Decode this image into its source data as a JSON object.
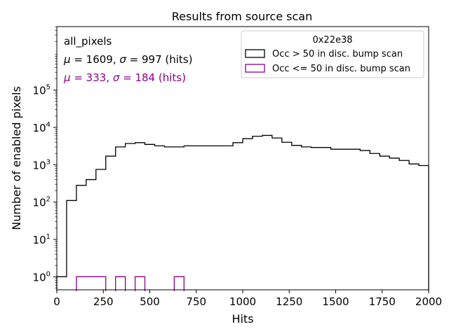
{
  "chart_data": {
    "type": "histogram",
    "title": "Results from source scan",
    "xlabel": "Hits",
    "ylabel": "Number of enabled pixels",
    "xlim": [
      0,
      2000
    ],
    "ylim_log10": [
      -0.35,
      6.7
    ],
    "yscale": "log",
    "xticks": [
      {
        "v": 0,
        "label": "0"
      },
      {
        "v": 250,
        "label": "250"
      },
      {
        "v": 500,
        "label": "500"
      },
      {
        "v": 750,
        "label": "750"
      },
      {
        "v": 1000,
        "label": "1000"
      },
      {
        "v": 1250,
        "label": "1250"
      },
      {
        "v": 1500,
        "label": "1500"
      },
      {
        "v": 1750,
        "label": "1750"
      },
      {
        "v": 2000,
        "label": "2000"
      }
    ],
    "yticks": [
      {
        "exp": 0,
        "base": "10",
        "sup": "0"
      },
      {
        "exp": 1,
        "base": "10",
        "sup": "1"
      },
      {
        "exp": 2,
        "base": "10",
        "sup": "2"
      },
      {
        "exp": 3,
        "base": "10",
        "sup": "3"
      },
      {
        "exp": 4,
        "base": "10",
        "sup": "4"
      },
      {
        "exp": 5,
        "base": "10",
        "sup": "5"
      }
    ],
    "annotations": {
      "label": "all_pixels",
      "stats_black": {
        "prefix_sym": "μ",
        "eq1": " = 1609, ",
        "sym2": "σ",
        "eq2": " = 997 (hits)"
      },
      "stats_purple": {
        "prefix_sym": "μ",
        "eq1": " = 333, ",
        "sym2": "σ",
        "eq2": " = 184 (hits)"
      }
    },
    "legend": {
      "title": "0x22e38",
      "position": "top-right",
      "entries": [
        {
          "label": "Occ > 50 in disc. bump scan",
          "color": "#000000"
        },
        {
          "label": "Occ <= 50 in disc. bump scan",
          "color": "#8b008b"
        }
      ]
    },
    "series": [
      {
        "name": "Occ > 50 in disc. bump scan",
        "color": "#000000",
        "bin_edges": [
          0,
          52.6,
          105.3,
          157.9,
          210.5,
          263.2,
          315.8,
          368.4,
          421.1,
          473.7,
          526.3,
          578.9,
          631.6,
          684.2,
          736.8,
          789.5,
          842.1,
          894.7,
          947.4,
          1000,
          1052.6,
          1105.3,
          1157.9,
          1210.5,
          1263.2,
          1315.8,
          1368.4,
          1421.1,
          1473.7,
          1526.3,
          1578.9,
          1631.6,
          1684.2,
          1736.8,
          1789.5,
          1842.1,
          1894.7,
          1947.4
        ],
        "values": [
          1,
          110,
          280,
          400,
          750,
          1700,
          3000,
          3700,
          3900,
          3500,
          3200,
          3000,
          3000,
          3200,
          3200,
          3200,
          3200,
          3200,
          3900,
          5000,
          5800,
          6100,
          5200,
          4000,
          3300,
          3000,
          2900,
          2900,
          2600,
          2600,
          2600,
          2400,
          2000,
          1700,
          1500,
          1300,
          1050,
          950
        ]
      },
      {
        "name": "Occ <= 50 in disc. bump scan",
        "color": "#8b008b",
        "bin_edges": [
          105.3,
          157.9,
          210.5,
          263.2,
          315.8,
          368.4,
          421.1,
          473.7,
          526.3,
          578.9,
          631.6,
          684.2
        ],
        "values": [
          1,
          1,
          1,
          0,
          1,
          0,
          1,
          0,
          0,
          0,
          1
        ]
      }
    ]
  }
}
